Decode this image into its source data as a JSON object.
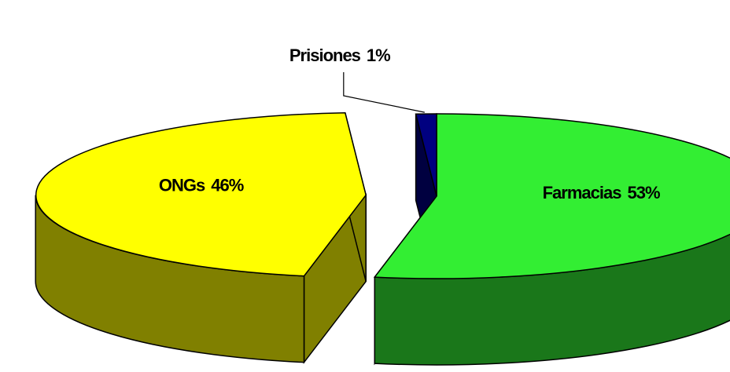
{
  "chart_data": {
    "type": "pie3d",
    "categories": [
      "Farmacias",
      "ONGs",
      "Prisiones"
    ],
    "values": [
      53,
      46,
      1
    ],
    "value_labels": [
      "53%",
      "46%",
      "1%"
    ],
    "colors": [
      "#33ee33",
      "#ffff00",
      "#000080"
    ],
    "exploded": [
      false,
      true,
      false
    ]
  }
}
